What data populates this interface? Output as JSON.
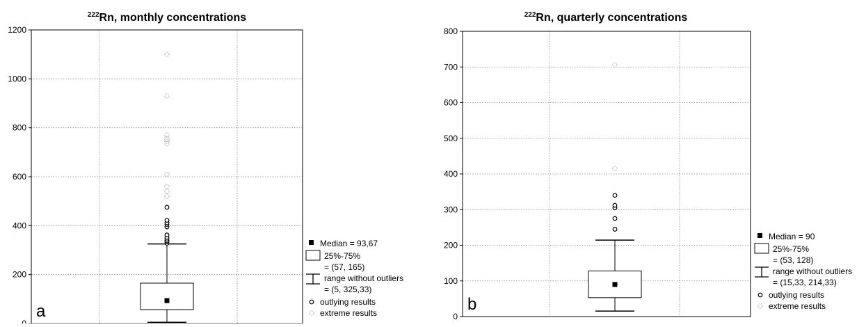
{
  "chart_data": [
    {
      "type": "box",
      "title_sup": "222",
      "title": "Rn, monthly concentrations",
      "panel_label": "a",
      "ylim": [
        0,
        1200
      ],
      "yticks": [
        "0",
        "200",
        "400",
        "600",
        "800",
        "1000",
        "1200"
      ],
      "grid": true,
      "box": {
        "median": 93.67,
        "q1": 57,
        "q3": 165,
        "whisker_low": 5,
        "whisker_high": 325.33
      },
      "outliers": [
        328,
        335,
        338,
        345,
        352,
        362,
        395,
        405,
        412,
        422,
        475
      ],
      "extremes": [
        520,
        540,
        560,
        610,
        735,
        745,
        755,
        770,
        930,
        1100
      ],
      "legend": {
        "median": "Median = 93,67",
        "box_label": "25%-75%",
        "box_values": "= (57, 165)",
        "range_label": "range without outliers",
        "range_values": "= (5, 325,33)",
        "outlying": "outlying results",
        "extreme": "extreme results"
      }
    },
    {
      "type": "box",
      "title_sup": "222",
      "title": "Rn, quarterly concentrations",
      "panel_label": "b",
      "ylim": [
        0,
        800
      ],
      "yticks": [
        "0",
        "100",
        "200",
        "300",
        "400",
        "500",
        "600",
        "700",
        "800"
      ],
      "grid": true,
      "box": {
        "median": 90,
        "q1": 53,
        "q3": 128,
        "whisker_low": 15.33,
        "whisker_high": 214.33
      },
      "outliers": [
        245,
        275,
        305,
        312,
        340
      ],
      "extremes": [
        415,
        705
      ],
      "legend": {
        "median": "Median = 90",
        "box_label": "25%-75%",
        "box_values": "= (53, 128)",
        "range_label": "range without outliers",
        "range_values": "= (15,33, 214,33)",
        "outlying": "outlying results",
        "extreme": "extreme results"
      }
    }
  ]
}
